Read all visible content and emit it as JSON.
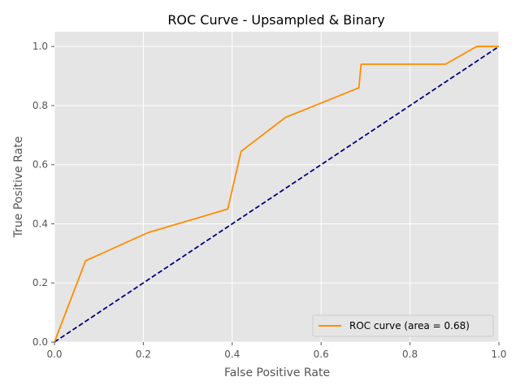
{
  "chart_data": {
    "type": "line",
    "title": "ROC Curve - Upsampled & Binary",
    "xlabel": "False Positive Rate",
    "ylabel": "True Positive Rate",
    "xlim": [
      0.0,
      1.0
    ],
    "ylim": [
      0.0,
      1.05
    ],
    "xticks": [
      "0.0",
      "0.2",
      "0.4",
      "0.6",
      "0.8",
      "1.0"
    ],
    "yticks": [
      "0.0",
      "0.2",
      "0.4",
      "0.6",
      "0.8",
      "1.0"
    ],
    "grid": true,
    "legend_position": "lower-right",
    "series": [
      {
        "name": "ROC curve (area = 0.68)",
        "color": "#ff8c00",
        "style": "solid",
        "x": [
          0.0,
          0.07,
          0.21,
          0.39,
          0.42,
          0.52,
          0.685,
          0.69,
          0.88,
          0.95,
          1.0
        ],
        "y": [
          0.0,
          0.275,
          0.37,
          0.45,
          0.645,
          0.76,
          0.86,
          0.94,
          0.94,
          1.0,
          1.0
        ]
      },
      {
        "name": "",
        "color": "#000080",
        "style": "dashed",
        "x": [
          0.0,
          1.0
        ],
        "y": [
          0.0,
          1.0
        ]
      }
    ]
  }
}
